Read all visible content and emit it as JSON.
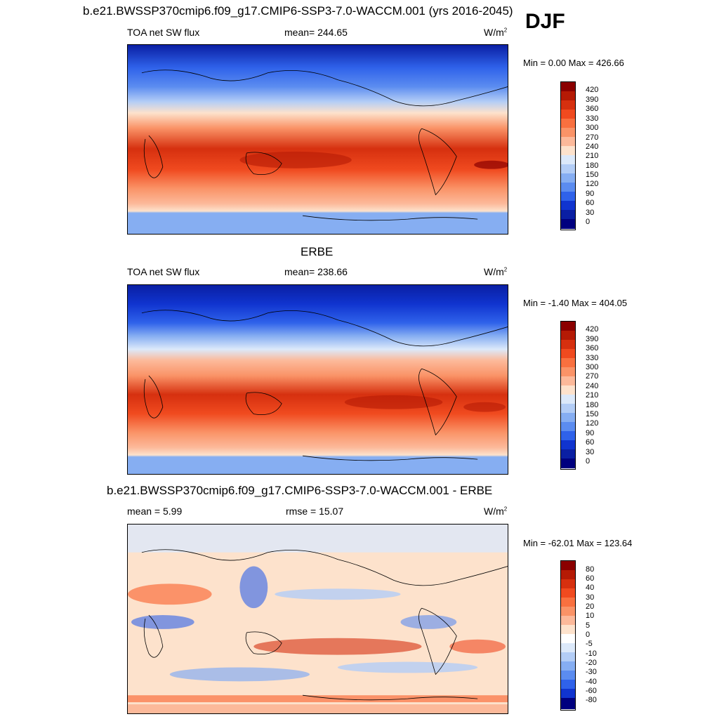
{
  "main_title": "b.e21.BWSSP370cmip6.f09_g17.CMIP6-SSP3-7.0-WACCM.001 (yrs 2016-2045)",
  "season": "DJF",
  "panels": [
    {
      "title": "",
      "field": "TOA net SW flux",
      "stat": "mean= 244.65",
      "unit_base": "W/m",
      "unit_exp": "2",
      "minmax": "Min =   0.00 Max = 426.66",
      "levels": [
        "420",
        "390",
        "360",
        "330",
        "300",
        "270",
        "240",
        "210",
        "180",
        "150",
        "120",
        "90",
        "60",
        "30",
        "0"
      ]
    },
    {
      "title": "ERBE",
      "field": "TOA net SW flux",
      "stat": "mean= 238.66",
      "unit_base": "W/m",
      "unit_exp": "2",
      "minmax": "Min =  -1.40 Max = 404.05",
      "levels": [
        "420",
        "390",
        "360",
        "330",
        "300",
        "270",
        "240",
        "210",
        "180",
        "150",
        "120",
        "90",
        "60",
        "30",
        "0"
      ]
    },
    {
      "title": "b.e21.BWSSP370cmip6.f09_g17.CMIP6-SSP3-7.0-WACCM.001 - ERBE",
      "field": "mean =   5.99",
      "stat": "rmse =  15.07",
      "unit_base": "W/m",
      "unit_exp": "2",
      "minmax": "Min = -62.01 Max = 123.64",
      "levels": [
        "80",
        "60",
        "40",
        "30",
        "20",
        "10",
        "5",
        "0",
        "-5",
        "-10",
        "-20",
        "-30",
        "-40",
        "-60",
        "-80"
      ]
    }
  ],
  "colors": {
    "abs_scale": [
      "#8b0000",
      "#b51a05",
      "#d6300f",
      "#f04a1f",
      "#f9703f",
      "#fa9367",
      "#fcb99a",
      "#fde2cc",
      "#dce9fa",
      "#b3cdf6",
      "#86aef2",
      "#5b8cf0",
      "#2f62ea",
      "#1034cf",
      "#0a1fa3",
      "#00007f"
    ],
    "diff_scale": [
      "#8b0000",
      "#b51a05",
      "#d6300f",
      "#f04a1f",
      "#f9703f",
      "#fa9367",
      "#fcb99a",
      "#fde2cc",
      "#ffffff",
      "#dce9fa",
      "#b3cdf6",
      "#86aef2",
      "#5b8cf0",
      "#2f62ea",
      "#1034cf",
      "#00007f"
    ]
  }
}
